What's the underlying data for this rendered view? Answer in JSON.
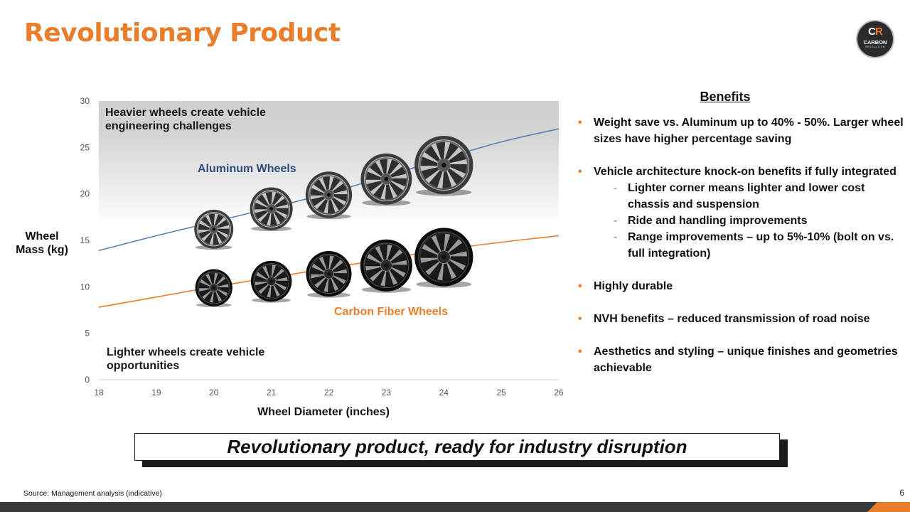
{
  "slide": {
    "title": "Revolutionary Product",
    "logo_text": "CARBON",
    "logo_subtext": "REVOLUTION",
    "page_number": "6",
    "source": "Source: Management analysis (indicative)",
    "callout": "Revolutionary product, ready for industry disruption"
  },
  "annotations": {
    "top": "Heavier wheels create vehicle engineering challenges",
    "bottom": "Lighter wheels create vehicle opportunities"
  },
  "benefits": {
    "title": "Benefits",
    "items": [
      "Weight save vs. Aluminum up to 40% - 50%. Larger wheel sizes have higher percentage saving",
      "Vehicle architecture knock-on benefits if fully integrated",
      "Highly durable",
      "NVH benefits – reduced transmission of road noise",
      "Aesthetics and styling – unique finishes and geometries achievable"
    ],
    "subitems": [
      "Lighter corner means lighter and lower cost chassis and suspension",
      "Ride and handling improvements",
      "Range improvements – up to 5%-10% (bolt on vs. full integration)"
    ]
  },
  "colors": {
    "accent": "#E87D2C",
    "aluminum_line": "#5A7FB5",
    "aluminum_label": "#2F4D80",
    "carbon_line": "#E87D2C"
  },
  "chart_data": {
    "type": "line",
    "xlabel": "Wheel Diameter (inches)",
    "ylabel": "Wheel Mass (kg)",
    "xlim": [
      18,
      26
    ],
    "ylim": [
      0,
      30
    ],
    "xticks": [
      18,
      19,
      20,
      21,
      22,
      23,
      24,
      25,
      26
    ],
    "yticks": [
      0,
      5,
      10,
      15,
      20,
      25,
      30
    ],
    "grid": false,
    "series": [
      {
        "name": "Aluminum Wheels",
        "x": [
          18,
          19,
          20,
          21,
          22,
          23,
          24,
          25,
          26
        ],
        "values": [
          13.9,
          15.5,
          17.0,
          18.5,
          20.1,
          21.9,
          23.8,
          25.6,
          27.0
        ]
      },
      {
        "name": "Carbon Fiber Wheels",
        "x": [
          18,
          19,
          20,
          21,
          22,
          23,
          24,
          25,
          26
        ],
        "values": [
          7.8,
          8.9,
          10.0,
          11.0,
          12.0,
          13.0,
          14.0,
          14.8,
          15.5
        ]
      }
    ],
    "wheel_images": [
      {
        "series": "Aluminum Wheels",
        "x": 20.0,
        "y": 16.2,
        "size": 4.2
      },
      {
        "series": "Aluminum Wheels",
        "x": 21.0,
        "y": 18.4,
        "size": 4.6
      },
      {
        "series": "Aluminum Wheels",
        "x": 22.0,
        "y": 19.9,
        "size": 5.0
      },
      {
        "series": "Aluminum Wheels",
        "x": 23.0,
        "y": 21.6,
        "size": 5.5
      },
      {
        "series": "Aluminum Wheels",
        "x": 24.0,
        "y": 23.1,
        "size": 6.3
      },
      {
        "series": "Carbon Fiber Wheels",
        "x": 20.0,
        "y": 9.9,
        "size": 4.0
      },
      {
        "series": "Carbon Fiber Wheels",
        "x": 21.0,
        "y": 10.6,
        "size": 4.4
      },
      {
        "series": "Carbon Fiber Wheels",
        "x": 22.0,
        "y": 11.4,
        "size": 4.9
      },
      {
        "series": "Carbon Fiber Wheels",
        "x": 23.0,
        "y": 12.3,
        "size": 5.6
      },
      {
        "series": "Carbon Fiber Wheels",
        "x": 24.0,
        "y": 13.2,
        "size": 6.3
      }
    ]
  }
}
